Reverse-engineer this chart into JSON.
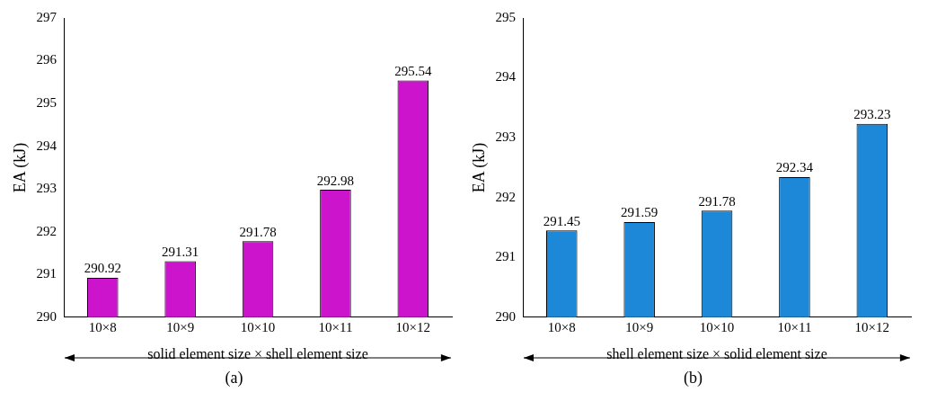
{
  "chart_data": [
    {
      "type": "bar",
      "ylabel": "EA (kJ)",
      "xlabel": "solid element size × shell element size",
      "categories": [
        "10×8",
        "10×9",
        "10×10",
        "10×11",
        "10×12"
      ],
      "values": [
        290.92,
        291.31,
        291.78,
        292.98,
        295.54
      ],
      "color": "#cc14cc",
      "ylim": [
        290,
        297
      ],
      "yticks": [
        290,
        291,
        292,
        293,
        294,
        295,
        296,
        297
      ],
      "grid": false,
      "data_labels": true,
      "annotations": [
        "(a)"
      ]
    },
    {
      "type": "bar",
      "ylabel": "EA (kJ)",
      "xlabel": "shell element size × solid element size",
      "categories": [
        "10×8",
        "10×9",
        "10×10",
        "10×11",
        "10×12"
      ],
      "values": [
        291.45,
        291.59,
        291.78,
        292.34,
        293.23
      ],
      "color": "#1e88d8",
      "ylim": [
        290,
        295
      ],
      "yticks": [
        290,
        291,
        292,
        293,
        294,
        295
      ],
      "grid": false,
      "data_labels": true,
      "annotations": [
        "(b)"
      ]
    }
  ]
}
